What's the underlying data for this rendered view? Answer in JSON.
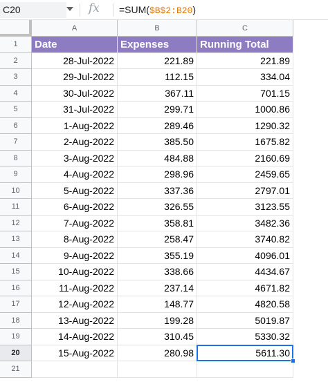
{
  "formula_bar": {
    "cell_ref": "C20",
    "fx_label": "fx",
    "formula_prefix": "=SUM(",
    "formula_range": "$B$2:B20",
    "formula_suffix": ")"
  },
  "columns": [
    "A",
    "B",
    "C"
  ],
  "row_numbers": [
    "1",
    "2",
    "3",
    "4",
    "5",
    "6",
    "7",
    "8",
    "9",
    "10",
    "11",
    "12",
    "13",
    "14",
    "15",
    "16",
    "17",
    "18",
    "19",
    "20",
    "21"
  ],
  "header": [
    "Date",
    "Expenses",
    "Running Total"
  ],
  "rows": [
    [
      "28-Jul-2022",
      "221.89",
      "221.89"
    ],
    [
      "29-Jul-2022",
      "112.15",
      "334.04"
    ],
    [
      "30-Jul-2022",
      "367.11",
      "701.15"
    ],
    [
      "31-Jul-2022",
      "299.71",
      "1000.86"
    ],
    [
      "1-Aug-2022",
      "289.46",
      "1290.32"
    ],
    [
      "2-Aug-2022",
      "385.50",
      "1675.82"
    ],
    [
      "3-Aug-2022",
      "484.88",
      "2160.69"
    ],
    [
      "4-Aug-2022",
      "298.96",
      "2459.65"
    ],
    [
      "5-Aug-2022",
      "337.36",
      "2797.01"
    ],
    [
      "6-Aug-2022",
      "326.55",
      "3123.55"
    ],
    [
      "7-Aug-2022",
      "358.81",
      "3482.36"
    ],
    [
      "8-Aug-2022",
      "258.47",
      "3740.82"
    ],
    [
      "9-Aug-2022",
      "355.19",
      "4096.01"
    ],
    [
      "10-Aug-2022",
      "338.66",
      "4434.67"
    ],
    [
      "11-Aug-2022",
      "237.14",
      "4671.82"
    ],
    [
      "12-Aug-2022",
      "148.77",
      "4820.58"
    ],
    [
      "13-Aug-2022",
      "199.28",
      "5019.87"
    ],
    [
      "14-Aug-2022",
      "310.45",
      "5330.32"
    ],
    [
      "15-Aug-2022",
      "280.98",
      "5611.30"
    ]
  ],
  "selected_cell": "C20",
  "colors": {
    "header_fill": "#8e7cc3",
    "selection": "#1a73e8",
    "formula_ref": "#e37400"
  }
}
